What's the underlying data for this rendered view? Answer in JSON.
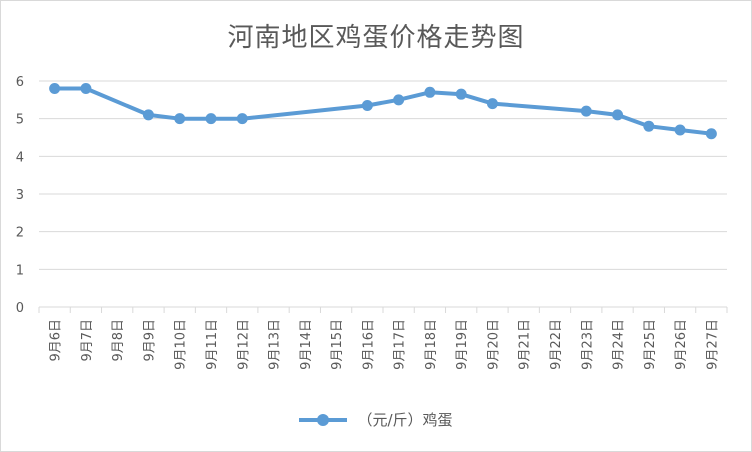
{
  "colors": {
    "series": "#5b9bd5",
    "grid": "#d9d9d9",
    "text": "#595959"
  },
  "chart_data": {
    "type": "line",
    "title": "河南地区鸡蛋价格走势图",
    "categories": [
      "9月6日",
      "9月7日",
      "9月8日",
      "9月9日",
      "9月10日",
      "9月11日",
      "9月12日",
      "9月13日",
      "9月14日",
      "9月15日",
      "9月16日",
      "9月17日",
      "9月18日",
      "9月19日",
      "9月20日",
      "9月21日",
      "9月22日",
      "9月23日",
      "9月24日",
      "9月25日",
      "9月26日",
      "9月27日"
    ],
    "series": [
      {
        "name": "（元/斤）鸡蛋",
        "values": [
          5.8,
          5.8,
          null,
          5.1,
          5.0,
          5.0,
          5.0,
          null,
          null,
          null,
          5.35,
          5.5,
          5.7,
          5.65,
          5.4,
          null,
          null,
          5.2,
          5.1,
          4.8,
          4.7,
          4.6
        ]
      }
    ],
    "yticks": [
      0,
      1,
      2,
      3,
      4,
      5,
      6
    ],
    "ylim": [
      0,
      6
    ],
    "grid": true,
    "legend_position": "bottom",
    "connect_gaps": true
  }
}
